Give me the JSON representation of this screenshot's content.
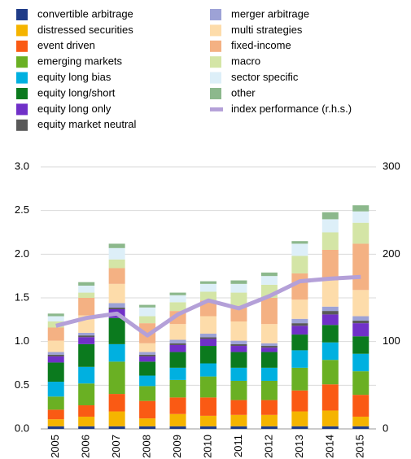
{
  "chart_data": {
    "type": "bar",
    "categories": [
      "2005",
      "2006",
      "2007",
      "2008",
      "2009",
      "2010",
      "2011",
      "2012",
      "2013",
      "2014",
      "2015"
    ],
    "series": [
      {
        "name": "convertible arbitrage",
        "color": "#1f3c88",
        "values": [
          0.03,
          0.03,
          0.03,
          0.03,
          0.03,
          0.03,
          0.03,
          0.03,
          0.03,
          0.03,
          0.03
        ]
      },
      {
        "name": "distressed securities",
        "color": "#f5b400",
        "values": [
          0.08,
          0.11,
          0.17,
          0.09,
          0.14,
          0.12,
          0.13,
          0.13,
          0.17,
          0.18,
          0.11
        ]
      },
      {
        "name": "event driven",
        "color": "#fa5a14",
        "values": [
          0.11,
          0.13,
          0.2,
          0.2,
          0.19,
          0.21,
          0.17,
          0.17,
          0.24,
          0.3,
          0.25
        ]
      },
      {
        "name": "emerging markets",
        "color": "#6ab023",
        "values": [
          0.15,
          0.25,
          0.37,
          0.17,
          0.2,
          0.24,
          0.22,
          0.22,
          0.26,
          0.28,
          0.27
        ]
      },
      {
        "name": "equity long bias",
        "color": "#00b0e0",
        "values": [
          0.17,
          0.19,
          0.2,
          0.12,
          0.14,
          0.15,
          0.15,
          0.15,
          0.2,
          0.2,
          0.2
        ]
      },
      {
        "name": "equity long/short",
        "color": "#0b7a1e",
        "values": [
          0.22,
          0.26,
          0.3,
          0.16,
          0.18,
          0.2,
          0.18,
          0.18,
          0.18,
          0.2,
          0.2
        ]
      },
      {
        "name": "equity long only",
        "color": "#7030c8",
        "values": [
          0.07,
          0.08,
          0.1,
          0.06,
          0.08,
          0.08,
          0.07,
          0.05,
          0.1,
          0.12,
          0.15
        ]
      },
      {
        "name": "equity market neutral",
        "color": "#595959",
        "values": [
          0.02,
          0.02,
          0.02,
          0.02,
          0.02,
          0.02,
          0.02,
          0.02,
          0.03,
          0.04,
          0.03
        ]
      },
      {
        "name": "merger arbitrage",
        "color": "#9da2d6",
        "values": [
          0.03,
          0.03,
          0.05,
          0.03,
          0.04,
          0.04,
          0.04,
          0.03,
          0.05,
          0.05,
          0.05
        ]
      },
      {
        "name": "multi strategies",
        "color": "#fddcaa",
        "values": [
          0.13,
          0.2,
          0.22,
          0.1,
          0.18,
          0.2,
          0.22,
          0.22,
          0.22,
          0.3,
          0.3
        ]
      },
      {
        "name": "fixed-income",
        "color": "#f4b183",
        "values": [
          0.15,
          0.2,
          0.18,
          0.23,
          0.15,
          0.18,
          0.18,
          0.3,
          0.3,
          0.35,
          0.53
        ]
      },
      {
        "name": "macro",
        "color": "#d4e5a6",
        "values": [
          0.07,
          0.06,
          0.1,
          0.08,
          0.1,
          0.1,
          0.15,
          0.15,
          0.2,
          0.2,
          0.24
        ]
      },
      {
        "name": "sector specific",
        "color": "#ddeff8",
        "values": [
          0.06,
          0.08,
          0.13,
          0.1,
          0.08,
          0.09,
          0.1,
          0.1,
          0.14,
          0.15,
          0.13
        ]
      },
      {
        "name": "other",
        "color": "#8cb88c",
        "values": [
          0.03,
          0.04,
          0.05,
          0.03,
          0.03,
          0.03,
          0.04,
          0.04,
          0.03,
          0.08,
          0.07
        ]
      },
      {
        "name": "index performance (r.h.s.)",
        "color": "#b4a0d8",
        "type": "line",
        "axis": "y2",
        "values": [
          118,
          127,
          132,
          107,
          131,
          147,
          138,
          152,
          169,
          172,
          174
        ]
      }
    ],
    "ylim": [
      0,
      3
    ],
    "yticks": [
      {
        "value": 0,
        "label": "0.0"
      },
      {
        "value": 0.5,
        "label": "0.5"
      },
      {
        "value": 1,
        "label": "1.0"
      },
      {
        "value": 1.5,
        "label": "1.5"
      },
      {
        "value": 2,
        "label": "2.0"
      },
      {
        "value": 2.5,
        "label": "2.5"
      },
      {
        "value": 3,
        "label": "3.0"
      }
    ],
    "y2lim": [
      0,
      300
    ],
    "y2ticks": [
      0,
      100,
      200,
      300
    ],
    "grid": true
  }
}
